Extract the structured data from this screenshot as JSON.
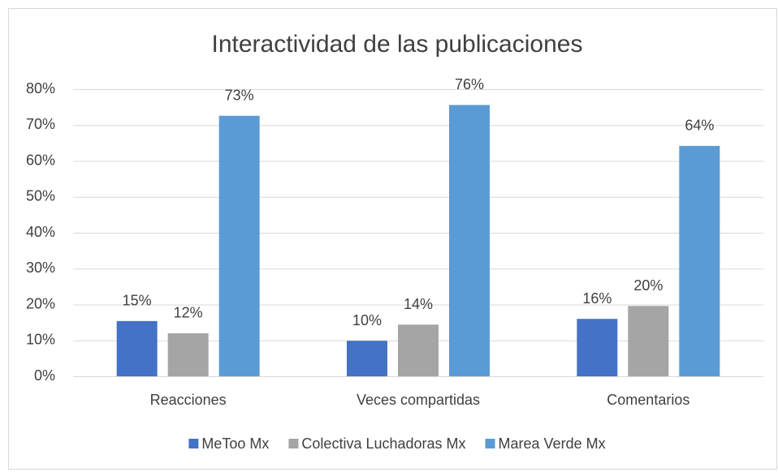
{
  "chart_data": {
    "type": "bar",
    "title": "Interactividad de las publicaciones",
    "categories": [
      "Reacciones",
      "Veces compartidas",
      "Comentarios"
    ],
    "series": [
      {
        "name": "MeToo Mx",
        "color": "#4472c4",
        "values": [
          15.4,
          9.9,
          16.0
        ],
        "value_labels": [
          "15%",
          "10%",
          "16%"
        ]
      },
      {
        "name": "Colectiva Luchadoras Mx",
        "color": "#a5a5a5",
        "values": [
          12.0,
          14.4,
          19.6
        ],
        "value_labels": [
          "12%",
          "14%",
          "20%"
        ]
      },
      {
        "name": "Marea Verde Mx",
        "color": "#5b9bd5",
        "values": [
          72.6,
          75.6,
          64.2
        ],
        "value_labels": [
          "73%",
          "76%",
          "64%"
        ]
      }
    ],
    "ylim": [
      0,
      80
    ],
    "yticks": [
      {
        "value": 0,
        "label": "0%"
      },
      {
        "value": 10,
        "label": "10%"
      },
      {
        "value": 20,
        "label": "20%"
      },
      {
        "value": 30,
        "label": "30%"
      },
      {
        "value": 40,
        "label": "40%"
      },
      {
        "value": 50,
        "label": "50%"
      },
      {
        "value": 60,
        "label": "60%"
      },
      {
        "value": 70,
        "label": "70%"
      },
      {
        "value": 80,
        "label": "80%"
      }
    ],
    "grid": true,
    "legend": "bottom"
  }
}
